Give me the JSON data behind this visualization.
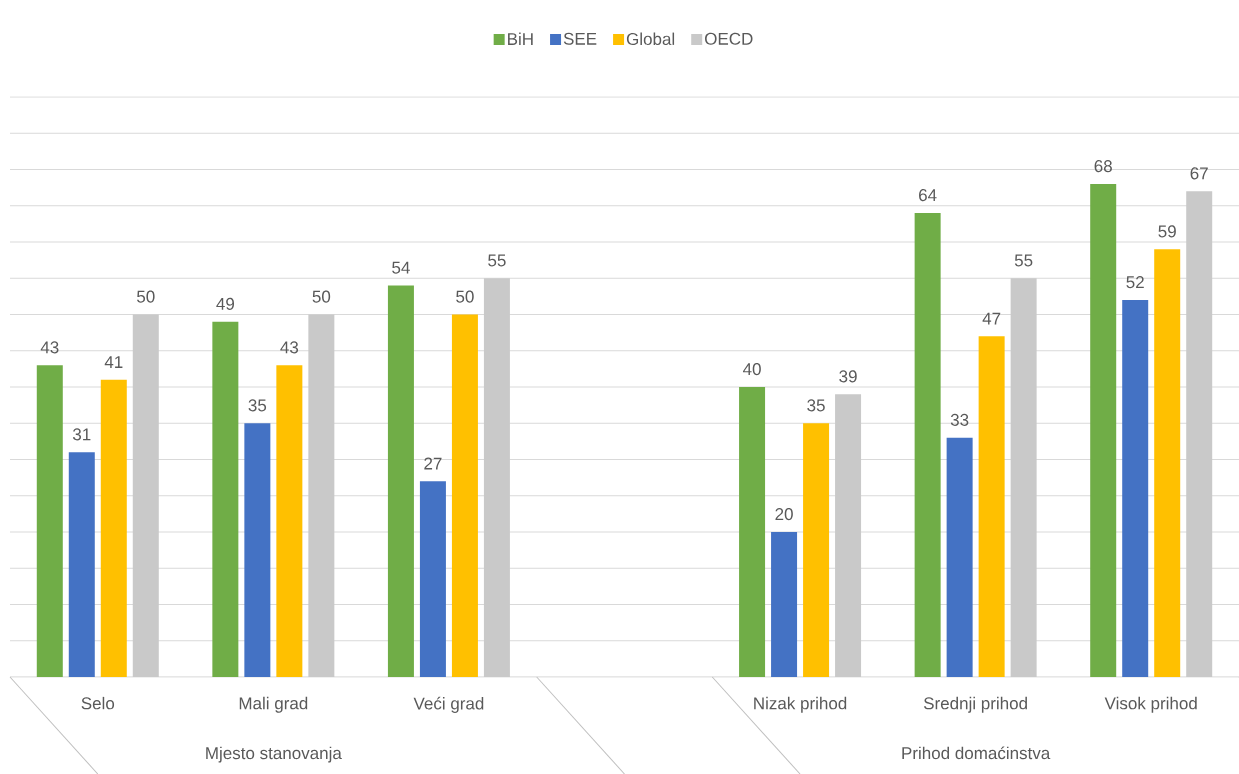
{
  "chart_data": {
    "type": "bar",
    "categories": [
      "Selo",
      "Mali grad",
      "Veći grad",
      null,
      "Nizak prihod",
      "Srednji prihod",
      "Visok prihod"
    ],
    "series": [
      {
        "name": "BiH",
        "color": "#70ad47",
        "values": [
          43,
          49,
          54,
          null,
          40,
          64,
          68
        ]
      },
      {
        "name": "SEE",
        "color": "#4472c4",
        "values": [
          31,
          35,
          27,
          null,
          20,
          33,
          52
        ]
      },
      {
        "name": "Global",
        "color": "#ffc000",
        "values": [
          41,
          43,
          50,
          null,
          35,
          47,
          59
        ]
      },
      {
        "name": "OECD",
        "color": "#c9c9c9",
        "values": [
          50,
          50,
          55,
          null,
          39,
          55,
          67
        ]
      }
    ],
    "ylim": [
      0,
      80
    ],
    "tick_labels": "x",
    "grid": "y",
    "legend": "top",
    "data_labels": true,
    "annotations": [
      "Mjesto stanovanja",
      "Prihod domaćinstva"
    ]
  }
}
